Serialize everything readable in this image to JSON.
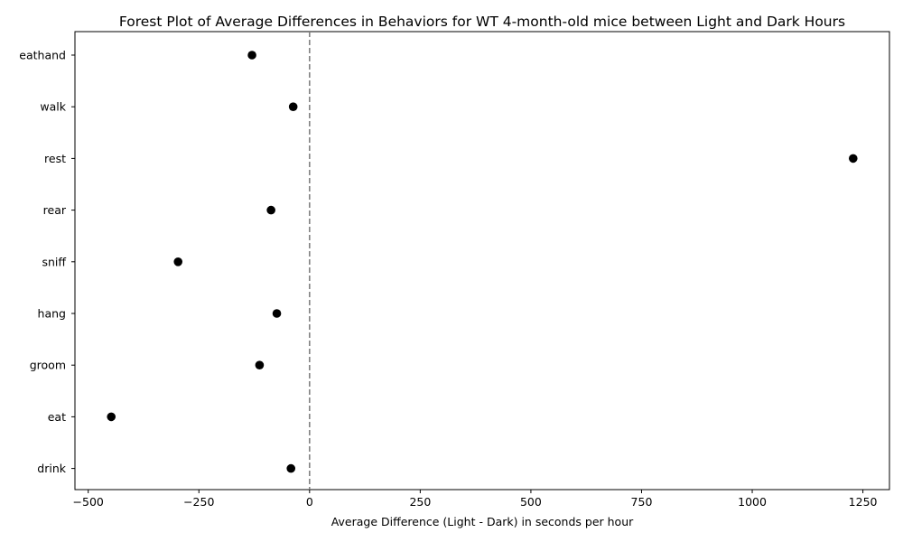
{
  "chart_data": {
    "type": "scatter",
    "title": "Forest Plot of Average Differences in Behaviors for WT 4-month-old mice between Light and Dark Hours",
    "xlabel": "Average Difference (Light - Dark) in seconds per hour",
    "ylabel": "",
    "xlim": [
      -530,
      1310
    ],
    "xticks": [
      -500,
      -250,
      0,
      250,
      500,
      750,
      1000,
      1250
    ],
    "xtick_labels": [
      "−500",
      "−250",
      "0",
      "250",
      "500",
      "750",
      "1000",
      "1250"
    ],
    "categories": [
      "eathand",
      "walk",
      "rest",
      "rear",
      "sniff",
      "hang",
      "groom",
      "eat",
      "drink"
    ],
    "values": [
      -130,
      -37,
      1228,
      -87,
      -297,
      -74,
      -113,
      -448,
      -42
    ],
    "reference_line": 0,
    "grid": false,
    "point_color": "#000000",
    "reference_color": "#808080"
  }
}
